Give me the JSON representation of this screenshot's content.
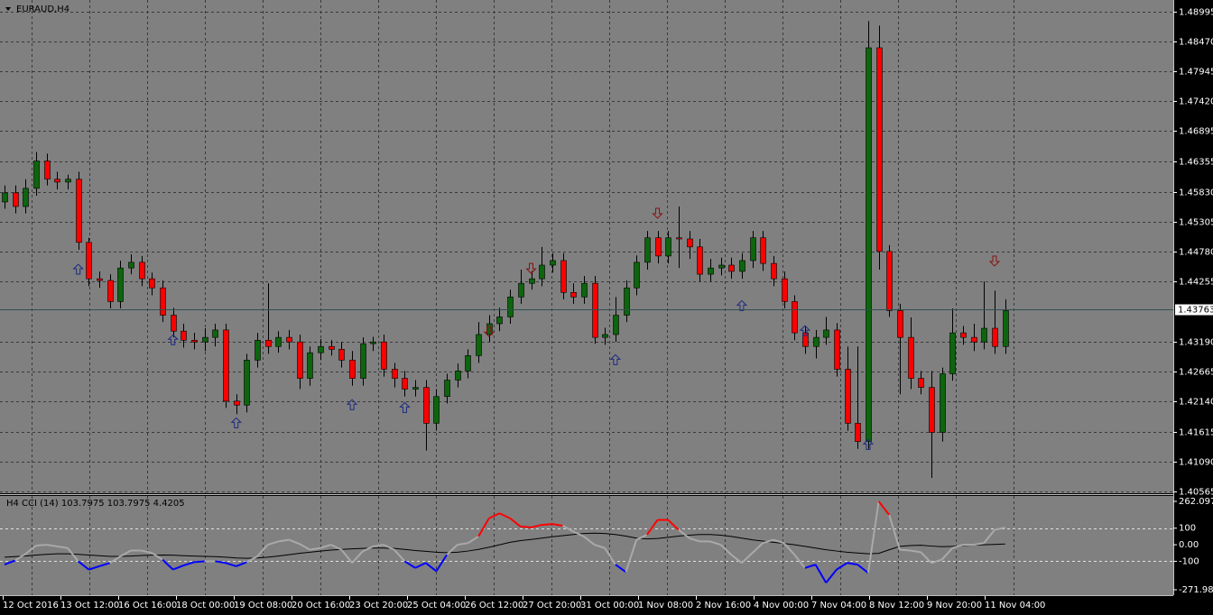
{
  "chart_data": {
    "type": "candlestick",
    "title": "EURAUD,H4",
    "ylim": [
      1.4053,
      1.492
    ],
    "yticks": [
      1.48995,
      {
        "value": 1.4847,
        "label": "1.48470"
      },
      1.47945,
      {
        "value": 1.4742,
        "label": "1.47420"
      },
      1.46895,
      1.46355,
      {
        "value": 1.4583,
        "label": "1.45830"
      },
      1.45305,
      {
        "value": 1.4478,
        "label": "1.44780"
      },
      1.44255,
      {
        "value": 1.4319,
        "label": "1.43190"
      },
      1.42665,
      {
        "value": 1.4214,
        "label": "1.42140"
      },
      1.41615,
      {
        "value": 1.4109,
        "label": "1.41090"
      },
      1.40565
    ],
    "current_price": 1.43763,
    "grid": true,
    "colors": {
      "up": "#0d650d",
      "down": "#ff0000",
      "wick": "#000000",
      "signal_up": "#1c2a80",
      "signal_down": "#8b1010"
    },
    "candles": [
      [
        1.4565,
        1.4594,
        1.4553,
        1.4581
      ],
      [
        1.4581,
        1.4594,
        1.4545,
        1.4557
      ],
      [
        1.4557,
        1.4605,
        1.4545,
        1.4589
      ],
      [
        1.4589,
        1.4653,
        1.4576,
        1.4637
      ],
      [
        1.4637,
        1.465,
        1.4594,
        1.4605
      ],
      [
        1.4605,
        1.4618,
        1.4587,
        1.46
      ],
      [
        1.46,
        1.4613,
        1.4587,
        1.4605
      ],
      [
        1.4605,
        1.4618,
        1.4481,
        1.4494
      ],
      [
        1.4494,
        1.4502,
        1.4417,
        1.443
      ],
      [
        1.443,
        1.4443,
        1.4414,
        1.4427
      ],
      [
        1.4427,
        1.4438,
        1.4378,
        1.439
      ],
      [
        1.439,
        1.4462,
        1.4378,
        1.4449
      ],
      [
        1.4449,
        1.4473,
        1.4438,
        1.4459
      ],
      [
        1.4459,
        1.447,
        1.4417,
        1.443
      ],
      [
        1.443,
        1.4441,
        1.4401,
        1.4414
      ],
      [
        1.4414,
        1.4427,
        1.4354,
        1.4366
      ],
      [
        1.4366,
        1.4379,
        1.4327,
        1.4338
      ],
      [
        1.4338,
        1.4351,
        1.4309,
        1.4322
      ],
      [
        1.4322,
        1.4335,
        1.4306,
        1.4319
      ],
      [
        1.4319,
        1.4343,
        1.4303,
        1.4327
      ],
      [
        1.4327,
        1.4351,
        1.4311,
        1.434
      ],
      [
        1.434,
        1.4351,
        1.4203,
        1.4215
      ],
      [
        1.4215,
        1.4227,
        1.4192,
        1.4208
      ],
      [
        1.4208,
        1.4298,
        1.4195,
        1.4287
      ],
      [
        1.4287,
        1.4335,
        1.4274,
        1.4322
      ],
      [
        1.4322,
        1.4422,
        1.4298,
        1.4311
      ],
      [
        1.4311,
        1.4338,
        1.43,
        1.4327
      ],
      [
        1.4327,
        1.434,
        1.4306,
        1.4319
      ],
      [
        1.4319,
        1.4332,
        1.4236,
        1.4255
      ],
      [
        1.4255,
        1.4311,
        1.4242,
        1.43
      ],
      [
        1.43,
        1.4324,
        1.4287,
        1.4311
      ],
      [
        1.4311,
        1.4322,
        1.4295,
        1.4306
      ],
      [
        1.4306,
        1.4319,
        1.4274,
        1.4287
      ],
      [
        1.4287,
        1.4303,
        1.4242,
        1.4255
      ],
      [
        1.4255,
        1.4327,
        1.4242,
        1.4316
      ],
      [
        1.4316,
        1.4328,
        1.4303,
        1.4319
      ],
      [
        1.4319,
        1.4332,
        1.4258,
        1.4271
      ],
      [
        1.4271,
        1.4282,
        1.4239,
        1.4255
      ],
      [
        1.4255,
        1.4268,
        1.4223,
        1.4236
      ],
      [
        1.4236,
        1.4252,
        1.4223,
        1.4239
      ],
      [
        1.4239,
        1.4252,
        1.4128,
        1.4176
      ],
      [
        1.4176,
        1.4236,
        1.4163,
        1.4223
      ],
      [
        1.4223,
        1.4263,
        1.4211,
        1.4252
      ],
      [
        1.4252,
        1.4281,
        1.4239,
        1.4268
      ],
      [
        1.4268,
        1.4306,
        1.4255,
        1.4295
      ],
      [
        1.4295,
        1.4354,
        1.4282,
        1.4332
      ],
      [
        1.4332,
        1.4366,
        1.4319,
        1.4351
      ],
      [
        1.4351,
        1.4379,
        1.4338,
        1.4363
      ],
      [
        1.4363,
        1.4411,
        1.4351,
        1.4398
      ],
      [
        1.4398,
        1.4446,
        1.4386,
        1.4422
      ],
      [
        1.4422,
        1.4444,
        1.4411,
        1.443
      ],
      [
        1.443,
        1.4486,
        1.4417,
        1.4454
      ],
      [
        1.4454,
        1.4475,
        1.4441,
        1.4462
      ],
      [
        1.4462,
        1.4475,
        1.4394,
        1.4406
      ],
      [
        1.4406,
        1.4422,
        1.4386,
        1.4398
      ],
      [
        1.4398,
        1.4435,
        1.4386,
        1.4422
      ],
      [
        1.4422,
        1.4435,
        1.4316,
        1.4327
      ],
      [
        1.4327,
        1.4344,
        1.4314,
        1.4332
      ],
      [
        1.4332,
        1.4398,
        1.4319,
        1.4366
      ],
      [
        1.4366,
        1.4427,
        1.4354,
        1.4414
      ],
      [
        1.4414,
        1.4471,
        1.4401,
        1.4459
      ],
      [
        1.4459,
        1.4514,
        1.4446,
        1.4502
      ],
      [
        1.4502,
        1.4514,
        1.4457,
        1.447
      ],
      [
        1.447,
        1.4514,
        1.4457,
        1.4502
      ],
      [
        1.4502,
        1.4557,
        1.4449,
        1.45
      ],
      [
        1.45,
        1.4514,
        1.4465,
        1.4486
      ],
      [
        1.4486,
        1.45,
        1.4425,
        1.4438
      ],
      [
        1.4438,
        1.4465,
        1.4425,
        1.4449
      ],
      [
        1.4449,
        1.4467,
        1.4436,
        1.4454
      ],
      [
        1.4454,
        1.4467,
        1.443,
        1.4443
      ],
      [
        1.4443,
        1.4475,
        1.443,
        1.4462
      ],
      [
        1.4462,
        1.4514,
        1.4449,
        1.4502
      ],
      [
        1.4502,
        1.4514,
        1.4444,
        1.4457
      ],
      [
        1.4457,
        1.447,
        1.4417,
        1.443
      ],
      [
        1.443,
        1.4443,
        1.4378,
        1.439
      ],
      [
        1.439,
        1.4401,
        1.4322,
        1.4335
      ],
      [
        1.4335,
        1.4347,
        1.4298,
        1.4311
      ],
      [
        1.4311,
        1.434,
        1.429,
        1.4327
      ],
      [
        1.4327,
        1.4363,
        1.4314,
        1.434
      ],
      [
        1.434,
        1.4352,
        1.4258,
        1.4271
      ],
      [
        1.4271,
        1.4311,
        1.4163,
        1.4176
      ],
      [
        1.4176,
        1.4311,
        1.4131,
        1.4144
      ],
      [
        1.4144,
        1.4883,
        1.4131,
        1.4836
      ],
      [
        1.4836,
        1.4875,
        1.4446,
        1.4478
      ],
      [
        1.4478,
        1.4489,
        1.4363,
        1.4374
      ],
      [
        1.4374,
        1.4386,
        1.4227,
        1.4327
      ],
      [
        1.4327,
        1.4362,
        1.4236,
        1.4255
      ],
      [
        1.4255,
        1.4268,
        1.4227,
        1.4239
      ],
      [
        1.4239,
        1.4268,
        1.408,
        1.416
      ],
      [
        1.416,
        1.4274,
        1.4144,
        1.4263
      ],
      [
        1.4263,
        1.4378,
        1.4251,
        1.4335
      ],
      [
        1.4335,
        1.4347,
        1.4314,
        1.4327
      ],
      [
        1.4327,
        1.4351,
        1.4303,
        1.4319
      ],
      [
        1.4319,
        1.4425,
        1.4306,
        1.4343
      ],
      [
        1.4343,
        1.4409,
        1.4298,
        1.4311
      ],
      [
        1.4311,
        1.4394,
        1.4298,
        1.4374
      ]
    ],
    "signals": {
      "up": [
        [
          7,
          1.4446
        ],
        [
          16,
          1.4322
        ],
        [
          22,
          1.4176
        ],
        [
          33,
          1.4208
        ],
        [
          38,
          1.4203
        ],
        [
          58,
          1.4287
        ],
        [
          70,
          1.4382
        ],
        [
          76,
          1.4338
        ],
        [
          82,
          1.4138
        ]
      ],
      "down": [
        [
          46,
          1.4338
        ],
        [
          50,
          1.4449
        ],
        [
          62,
          1.4546
        ],
        [
          94,
          1.4462
        ]
      ]
    },
    "x_labels": [
      "12 Oct 2016",
      "13 Oct 12:00",
      "16 Oct 16:00",
      "18 Oct 00:00",
      "19 Oct 08:00",
      "20 Oct 16:00",
      "23 Oct 20:00",
      "25 Oct 04:00",
      "26 Oct 12:00",
      "27 Oct 20:00",
      "31 Oct 00:00",
      "1 Nov 08:00",
      "2 Nov 16:00",
      "4 Nov 00:00",
      "7 Nov 04:00",
      "8 Nov 12:00",
      "9 Nov 20:00",
      "11 Nov 04:00"
    ],
    "indicator": {
      "type": "cci",
      "title": "H4 CCI (14) 103.7975 103.7975 4.4205",
      "ylim": [
        -271.9802,
        262.0973
      ],
      "yticks": [
        262.0973,
        100,
        {
          "value": 0,
          "label": "0.00"
        },
        -100,
        -271.9802
      ],
      "levels": [
        100,
        -100
      ],
      "colors": {
        "above": "#ff0000",
        "below": "#0000ff",
        "between": "#a9a9a9",
        "signal": "#000000",
        "level": "#e0e0e0"
      },
      "cci": [
        -120,
        -95,
        -55,
        -5,
        0,
        -10,
        -20,
        -100,
        -150,
        -130,
        -110,
        -70,
        -35,
        -35,
        -50,
        -90,
        -150,
        -125,
        -105,
        -100,
        -100,
        -110,
        -130,
        -105,
        -70,
        0,
        20,
        30,
        5,
        -30,
        -20,
        0,
        -30,
        -110,
        -40,
        -10,
        0,
        -30,
        -100,
        -140,
        -110,
        -160,
        -60,
        0,
        10,
        50,
        160,
        190,
        160,
        110,
        105,
        120,
        125,
        115,
        80,
        50,
        0,
        -20,
        -120,
        -165,
        30,
        60,
        150,
        150,
        90,
        40,
        20,
        20,
        0,
        -60,
        -110,
        -50,
        10,
        30,
        10,
        -60,
        -140,
        -120,
        -230,
        -150,
        -110,
        -120,
        -170,
        262,
        180,
        -30,
        -35,
        -45,
        -110,
        -90,
        -20,
        0,
        0,
        10,
        90,
        103.7975
      ],
      "signal": [
        -75,
        -72,
        -68,
        -62,
        -58,
        -55,
        -55,
        -58,
        -62,
        -66,
        -70,
        -70,
        -68,
        -65,
        -63,
        -62,
        -63,
        -66,
        -68,
        -70,
        -72,
        -75,
        -80,
        -82,
        -80,
        -75,
        -68,
        -60,
        -52,
        -45,
        -38,
        -32,
        -28,
        -25,
        -22,
        -20,
        -20,
        -22,
        -28,
        -35,
        -40,
        -45,
        -48,
        -45,
        -38,
        -28,
        -15,
        0,
        15,
        25,
        32,
        40,
        48,
        55,
        62,
        68,
        70,
        68,
        62,
        52,
        40,
        35,
        38,
        45,
        52,
        58,
        62,
        62,
        58,
        50,
        40,
        30,
        22,
        15,
        8,
        0,
        -10,
        -20,
        -30,
        -38,
        -45,
        -50,
        -55,
        -52,
        -30,
        -10,
        -5,
        -3,
        -8,
        -12,
        -10,
        -5,
        -2,
        0,
        2,
        4.4205
      ]
    }
  }
}
